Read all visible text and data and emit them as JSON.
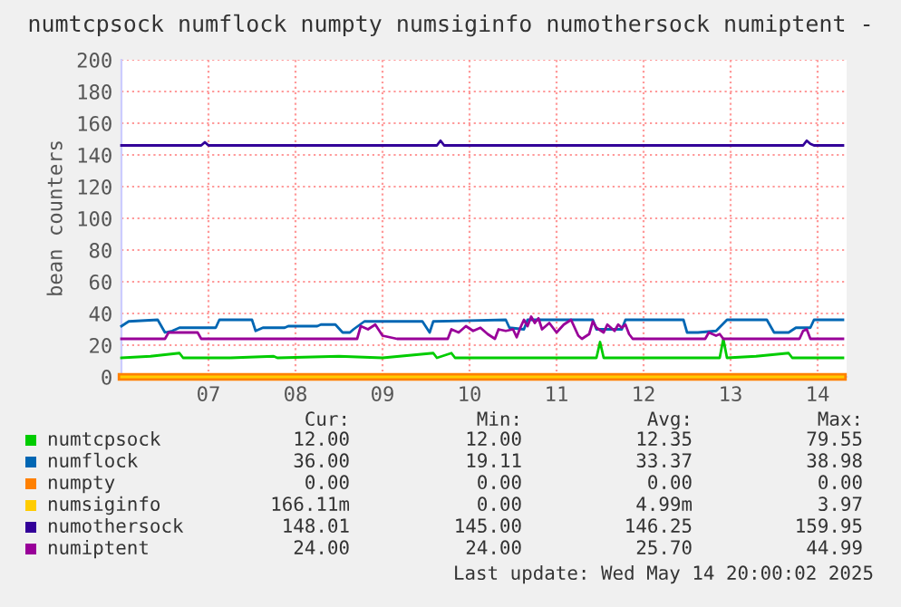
{
  "chart_data": {
    "type": "line",
    "title": "numtcpsock numflock numpty numsiginfo numothersock numiptent -",
    "ylabel": "bean counters",
    "xlim": [
      "2025-05-06T12:00",
      "2025-05-14T20:00"
    ],
    "xticks": [
      {
        "value": "2025-05-07T12:00",
        "label": "07"
      },
      {
        "value": "2025-05-08T12:00",
        "label": "08"
      },
      {
        "value": "2025-05-09T12:00",
        "label": "09"
      },
      {
        "value": "2025-05-10T12:00",
        "label": "10"
      },
      {
        "value": "2025-05-11T12:00",
        "label": "11"
      },
      {
        "value": "2025-05-12T12:00",
        "label": "12"
      },
      {
        "value": "2025-05-13T12:00",
        "label": "13"
      },
      {
        "value": "2025-05-14T12:00",
        "label": "14"
      }
    ],
    "ylim": [
      0,
      200
    ],
    "yticks": [
      0,
      20,
      40,
      60,
      80,
      100,
      120,
      140,
      160,
      180,
      200
    ],
    "grid": true,
    "legend": "bottom",
    "marker": "none",
    "line_style": "solid",
    "series": [
      {
        "name": "numtcpsock",
        "color": "#00cc00",
        "x": [
          "2025-05-06T12:00",
          "2025-05-06T20:00",
          "2025-05-07T04:00",
          "2025-05-07T05:00",
          "2025-05-07T18:00",
          "2025-05-08T06:00",
          "2025-05-08T07:00",
          "2025-05-09T00:00",
          "2025-05-09T12:00",
          "2025-05-10T02:00",
          "2025-05-10T03:00",
          "2025-05-10T07:00",
          "2025-05-10T08:00",
          "2025-05-11T02:00",
          "2025-05-11T12:00",
          "2025-05-11T23:00",
          "2025-05-12T00:00",
          "2025-05-12T01:00",
          "2025-05-12T18:00",
          "2025-05-13T09:00",
          "2025-05-13T10:00",
          "2025-05-13T11:00",
          "2025-05-13T19:00",
          "2025-05-14T04:00",
          "2025-05-14T05:00",
          "2025-05-14T19:00"
        ],
        "values": [
          12,
          13,
          15,
          12,
          12,
          13,
          12,
          13,
          12,
          15,
          12,
          15,
          12,
          12,
          12,
          12,
          22,
          12,
          12,
          12,
          24,
          12,
          13,
          15,
          12,
          12
        ]
      },
      {
        "name": "numflock",
        "color": "#0066b3",
        "x": [
          "2025-05-06T12:00",
          "2025-05-06T14:00",
          "2025-05-06T22:00",
          "2025-05-07T00:00",
          "2025-05-07T02:00",
          "2025-05-07T04:00",
          "2025-05-07T14:00",
          "2025-05-07T15:00",
          "2025-05-08T00:00",
          "2025-05-08T01:00",
          "2025-05-08T03:00",
          "2025-05-08T09:00",
          "2025-05-08T10:00",
          "2025-05-08T18:00",
          "2025-05-08T19:00",
          "2025-05-08T23:00",
          "2025-05-09T01:00",
          "2025-05-09T03:00",
          "2025-05-09T04:00",
          "2025-05-09T07:00",
          "2025-05-09T23:00",
          "2025-05-10T01:00",
          "2025-05-10T02:00",
          "2025-05-10T22:00",
          "2025-05-10T23:00",
          "2025-05-11T03:00",
          "2025-05-11T04:00",
          "2025-05-11T22:00",
          "2025-05-11T23:00",
          "2025-05-12T06:00",
          "2025-05-12T07:00",
          "2025-05-12T23:00",
          "2025-05-13T00:00",
          "2025-05-13T03:00",
          "2025-05-13T08:00",
          "2025-05-13T11:00",
          "2025-05-13T22:00",
          "2025-05-14T00:00",
          "2025-05-14T04:00",
          "2025-05-14T06:00",
          "2025-05-14T10:00",
          "2025-05-14T11:00",
          "2025-05-14T19:00"
        ],
        "values": [
          32,
          35,
          36,
          28,
          29,
          31,
          31,
          36,
          36,
          29,
          31,
          31,
          32,
          32,
          33,
          33,
          28,
          28,
          30,
          35,
          35,
          28,
          35,
          36,
          31,
          30,
          36,
          36,
          30,
          30,
          36,
          36,
          28,
          28,
          29,
          36,
          36,
          28,
          28,
          31,
          31,
          36,
          36
        ]
      },
      {
        "name": "numpty",
        "color": "#ff8000",
        "x": [
          "2025-05-06T12:00",
          "2025-05-14T19:00"
        ],
        "values": [
          0,
          0
        ]
      },
      {
        "name": "numsiginfo",
        "color": "#ffcc00",
        "x": [
          "2025-05-06T12:00",
          "2025-05-14T19:00"
        ],
        "values": [
          0,
          0
        ]
      },
      {
        "name": "numothersock",
        "color": "#330099",
        "x": [
          "2025-05-06T12:00",
          "2025-05-07T10:00",
          "2025-05-07T11:00",
          "2025-05-07T12:00",
          "2025-05-10T03:00",
          "2025-05-10T04:00",
          "2025-05-10T05:00",
          "2025-05-14T08:00",
          "2025-05-14T09:00",
          "2025-05-14T10:00",
          "2025-05-14T11:00",
          "2025-05-14T19:00"
        ],
        "values": [
          146,
          146,
          148,
          146,
          146,
          149,
          146,
          146,
          149,
          147,
          146,
          146
        ]
      },
      {
        "name": "numiptent",
        "color": "#990099",
        "x": [
          "2025-05-06T12:00",
          "2025-05-07T00:00",
          "2025-05-07T01:00",
          "2025-05-07T09:00",
          "2025-05-07T10:00",
          "2025-05-09T05:00",
          "2025-05-09T06:00",
          "2025-05-09T08:00",
          "2025-05-09T10:00",
          "2025-05-09T12:00",
          "2025-05-09T16:00",
          "2025-05-10T06:00",
          "2025-05-10T07:00",
          "2025-05-10T09:00",
          "2025-05-10T11:00",
          "2025-05-10T13:00",
          "2025-05-10T15:00",
          "2025-05-10T17:00",
          "2025-05-10T19:00",
          "2025-05-10T20:00",
          "2025-05-10T22:00",
          "2025-05-11T00:00",
          "2025-05-11T01:00",
          "2025-05-11T02:00",
          "2025-05-11T03:00",
          "2025-05-11T04:00",
          "2025-05-11T05:00",
          "2025-05-11T06:00",
          "2025-05-11T07:00",
          "2025-05-11T08:00",
          "2025-05-11T10:00",
          "2025-05-11T12:00",
          "2025-05-11T14:00",
          "2025-05-11T16:00",
          "2025-05-11T18:00",
          "2025-05-11T19:00",
          "2025-05-11T21:00",
          "2025-05-11T22:00",
          "2025-05-11T23:00",
          "2025-05-12T01:00",
          "2025-05-12T02:00",
          "2025-05-12T04:00",
          "2025-05-12T05:00",
          "2025-05-12T06:00",
          "2025-05-12T07:00",
          "2025-05-12T08:00",
          "2025-05-12T09:00",
          "2025-05-13T05:00",
          "2025-05-13T06:00",
          "2025-05-13T08:00",
          "2025-05-13T09:00",
          "2025-05-13T10:00",
          "2025-05-14T07:00",
          "2025-05-14T08:00",
          "2025-05-14T09:00",
          "2025-05-14T10:00",
          "2025-05-14T19:00"
        ],
        "values": [
          24,
          24,
          28,
          28,
          24,
          24,
          32,
          30,
          33,
          26,
          24,
          24,
          30,
          28,
          32,
          29,
          31,
          27,
          24,
          30,
          29,
          30,
          25,
          31,
          36,
          32,
          38,
          34,
          37,
          30,
          34,
          28,
          33,
          36,
          26,
          24,
          27,
          35,
          31,
          28,
          33,
          29,
          33,
          31,
          33,
          27,
          24,
          24,
          28,
          26,
          27,
          24,
          24,
          29,
          30,
          24,
          24
        ]
      }
    ],
    "annotations": [
      "Cur:",
      "Min:",
      "Avg:",
      "Max:",
      "12.00",
      "12.00",
      "12.35",
      "79.55",
      "36.00",
      "19.11",
      "33.37",
      "38.98",
      "0.00",
      "0.00",
      "0.00",
      "0.00",
      "166.11m",
      "0.00",
      "4.99m",
      "3.97",
      "148.01",
      "145.00",
      "146.25",
      "159.95",
      "24.00",
      "24.00",
      "25.70",
      "44.99",
      "Last update: Wed May 14 20:00:02 2025"
    ]
  }
}
